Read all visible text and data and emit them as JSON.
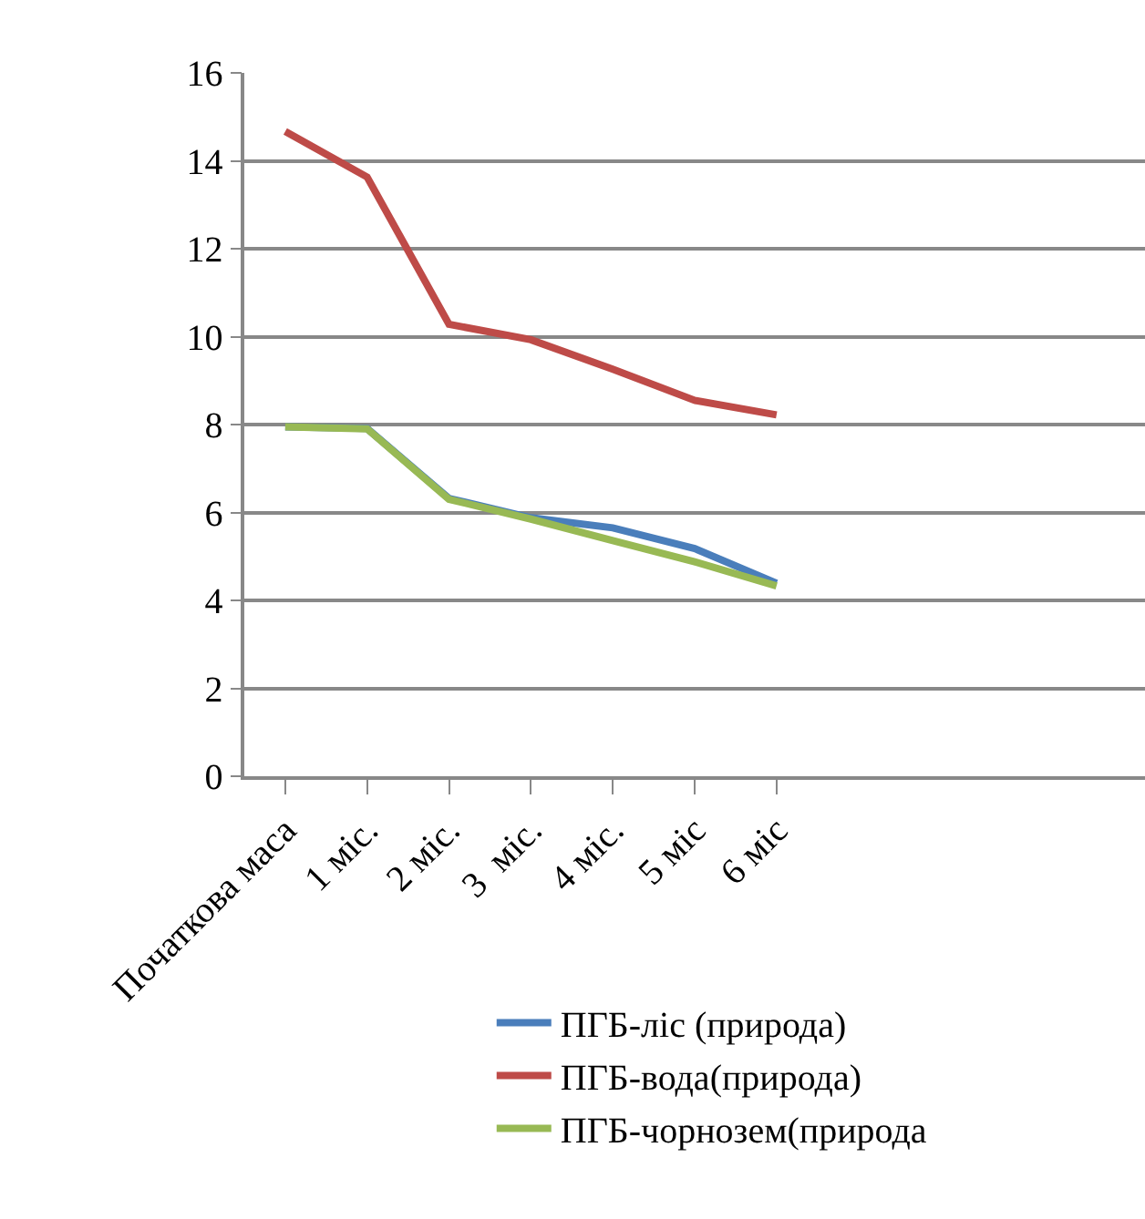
{
  "chart_data": {
    "type": "line",
    "categories": [
      "Початкова маса",
      "1 міс.",
      "2 міс.",
      "3  міс.",
      "4 міс.",
      "5 міс",
      "6 міс",
      null,
      null,
      null,
      null
    ],
    "series": [
      {
        "name": "ПГБ-ліс (природа)",
        "color": "#4a7ebb",
        "values": [
          7.95,
          7.91,
          6.32,
          5.88,
          5.65,
          5.18,
          4.39,
          null,
          null,
          null,
          null
        ]
      },
      {
        "name": "ПГБ-вода(природа)",
        "color": "#be4b48",
        "values": [
          14.67,
          13.63,
          10.28,
          9.93,
          9.26,
          8.55,
          8.22,
          null,
          null,
          null,
          null
        ]
      },
      {
        "name": "ПГБ-чорнозем(природа",
        "color": "#98b954",
        "values": [
          7.95,
          7.9,
          6.3,
          5.85,
          5.36,
          4.88,
          4.33,
          null,
          null,
          null,
          null
        ]
      }
    ],
    "ylim": [
      0,
      16
    ],
    "yticks": [
      0,
      2,
      4,
      6,
      8,
      10,
      12,
      14,
      16
    ],
    "grid": "y",
    "legend": "bottom",
    "marker": "none",
    "line_style": "solid"
  }
}
